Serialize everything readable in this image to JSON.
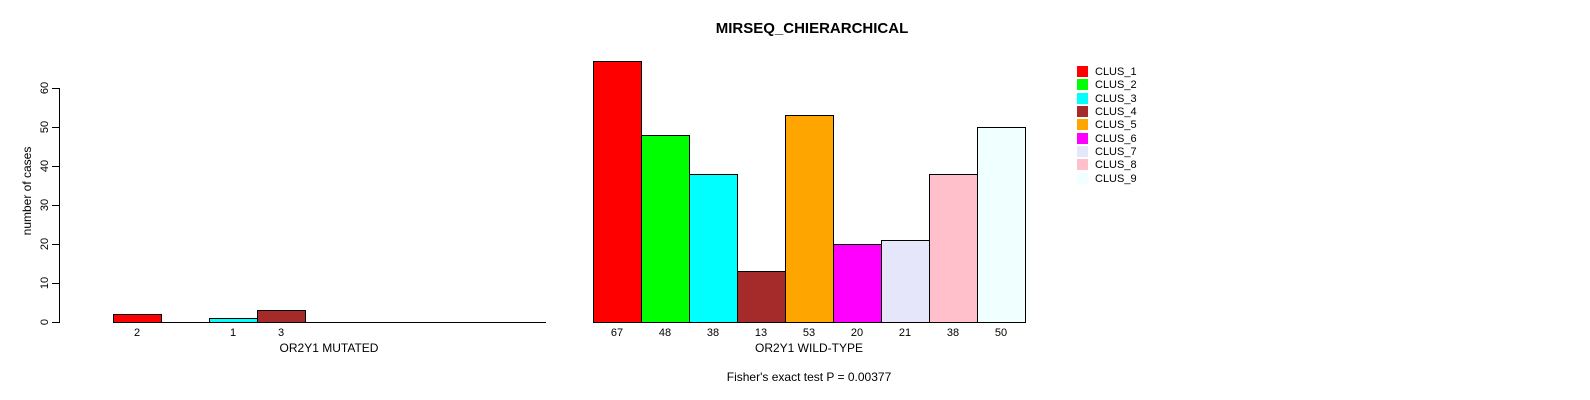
{
  "title": "MIRSEQ_CHIERARCHICAL",
  "footer_note": "Fisher's exact test P = 0.00377",
  "y_axis": {
    "label": "number of cases"
  },
  "legend": {
    "position": "right",
    "items": [
      {
        "label": "CLUS_1",
        "color": "#FF0000"
      },
      {
        "label": "CLUS_2",
        "color": "#00FF00"
      },
      {
        "label": "CLUS_3",
        "color": "#00FFFF"
      },
      {
        "label": "CLUS_4",
        "color": "#A52A2A"
      },
      {
        "label": "CLUS_5",
        "color": "#FFA500"
      },
      {
        "label": "CLUS_6",
        "color": "#FF00FF"
      },
      {
        "label": "CLUS_7",
        "color": "#E6E6FA"
      },
      {
        "label": "CLUS_8",
        "color": "#FFC0CB"
      },
      {
        "label": "CLUS_9",
        "color": "#F0FFFF"
      }
    ]
  },
  "chart_data": [
    {
      "type": "bar",
      "panel": "OR2Y1 MUTATED",
      "xlabel": "OR2Y1 MUTATED",
      "ylabel": "number of cases",
      "categories": [
        "CLUS_1",
        "CLUS_2",
        "CLUS_3",
        "CLUS_4",
        "CLUS_5",
        "CLUS_6",
        "CLUS_7",
        "CLUS_8",
        "CLUS_9"
      ],
      "values": [
        2,
        0,
        1,
        3,
        0,
        0,
        0,
        0,
        0
      ],
      "colors": [
        "#FF0000",
        "#00FF00",
        "#00FFFF",
        "#A52A2A",
        "#FFA500",
        "#FF00FF",
        "#E6E6FA",
        "#FFC0CB",
        "#F0FFFF"
      ],
      "ylim": [
        0,
        60
      ],
      "yticks": [
        0,
        10,
        20,
        30,
        40,
        50,
        60
      ],
      "grid": false,
      "bar_value_labels": "numeric value shown under each non-zero bar"
    },
    {
      "type": "bar",
      "panel": "OR2Y1 WILD-TYPE",
      "xlabel": "OR2Y1 WILD-TYPE",
      "ylabel": "number of cases",
      "categories": [
        "CLUS_1",
        "CLUS_2",
        "CLUS_3",
        "CLUS_4",
        "CLUS_5",
        "CLUS_6",
        "CLUS_7",
        "CLUS_8",
        "CLUS_9"
      ],
      "values": [
        67,
        48,
        38,
        13,
        53,
        20,
        21,
        38,
        50
      ],
      "colors": [
        "#FF0000",
        "#00FF00",
        "#00FFFF",
        "#A52A2A",
        "#FFA500",
        "#FF00FF",
        "#E6E6FA",
        "#FFC0CB",
        "#F0FFFF"
      ],
      "ylim": [
        0,
        60
      ],
      "yticks": [
        0,
        10,
        20,
        30,
        40,
        50,
        60
      ],
      "grid": false,
      "bar_value_labels": "numeric value shown under each bar"
    }
  ]
}
